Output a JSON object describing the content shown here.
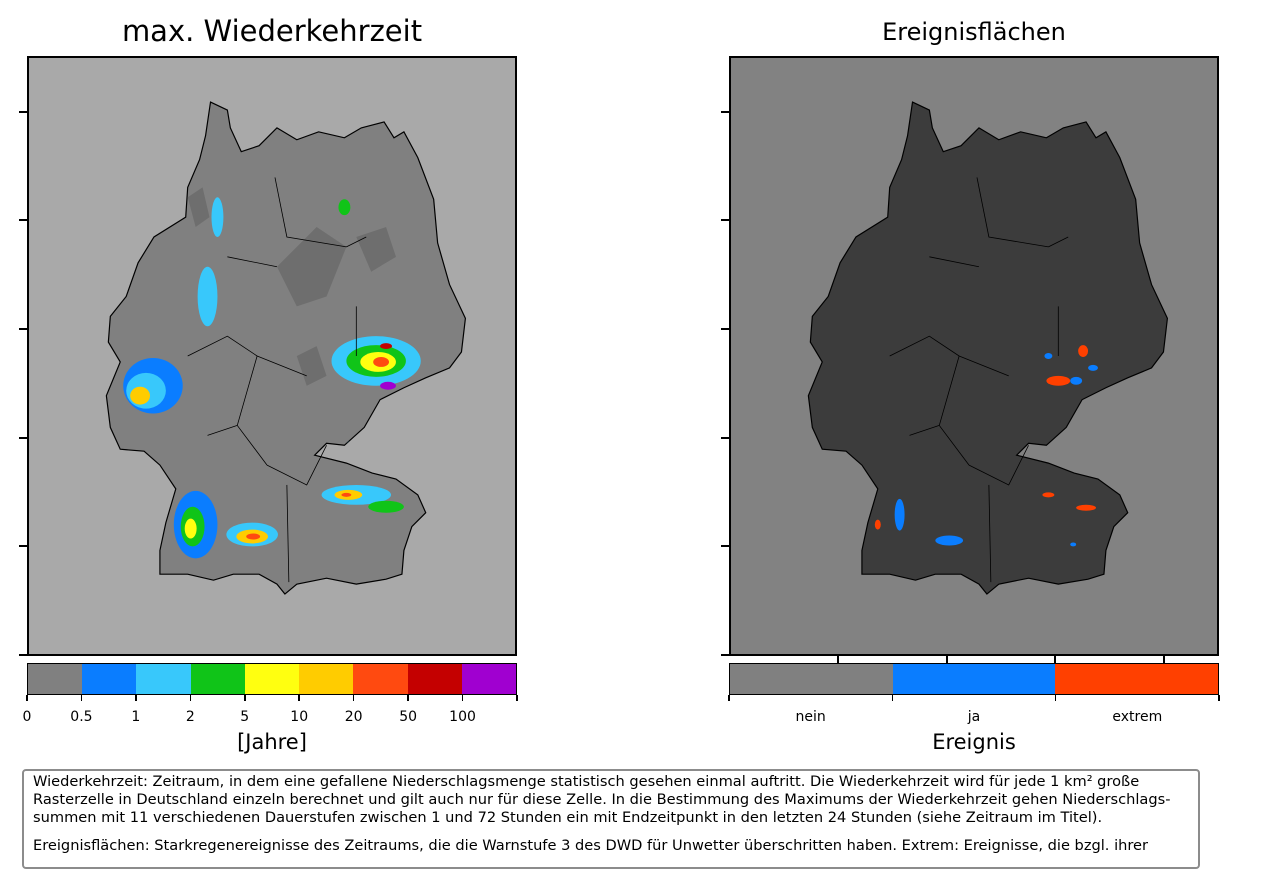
{
  "left_panel": {
    "title": "max. Wiederkehrzeit",
    "colorbar": {
      "colors": [
        "#808080",
        "#0a7dff",
        "#38c8fb",
        "#10c418",
        "#ffff10",
        "#ffcc00",
        "#ff4a10",
        "#c40000",
        "#a000d0"
      ],
      "tick_labels": [
        "0",
        "0.5",
        "1",
        "2",
        "5",
        "10",
        "20",
        "50",
        "100",
        ""
      ],
      "axis_title": "[Jahre]"
    }
  },
  "right_panel": {
    "title": "Ereignisflächen",
    "colorbar": {
      "colors": [
        "#808080",
        "#0a7dff",
        "#ff4000"
      ],
      "category_labels": [
        "nein",
        "ja",
        "extrem"
      ],
      "axis_title": "Ereignis"
    }
  },
  "colors": {
    "map_background_left": "#a9a9a9",
    "land_left": "#808080",
    "map_background_right": "#828282",
    "land_right": "#3c3c3c",
    "border": "#000000"
  },
  "info_box": {
    "paragraph_1": "Wiederkehrzeit: Zeitraum, in dem eine gefallene Niederschlagsmenge statistisch gesehen einmal auftritt. Die Wiederkehrzeit wird für jede 1 km² große\n Rasterzelle in Deutschland einzeln berechnet und gilt auch nur für diese Zelle. In die Bestimmung des Maximums der Wiederkehrzeit gehen Niederschlags-\nsummen mit 11 verschiedenen Dauerstufen zwischen 1 und 72 Stunden ein mit Endzeitpunkt in den letzten 24 Stunden (siehe Zeitraum im Titel).",
    "paragraph_2": "Ereignisflächen: Starkregenereignisse des Zeitraums, die die Warnstufe 3 des DWD für Unwetter überschritten  haben. Extrem: Ereignisse, die bzgl. ihrer"
  }
}
